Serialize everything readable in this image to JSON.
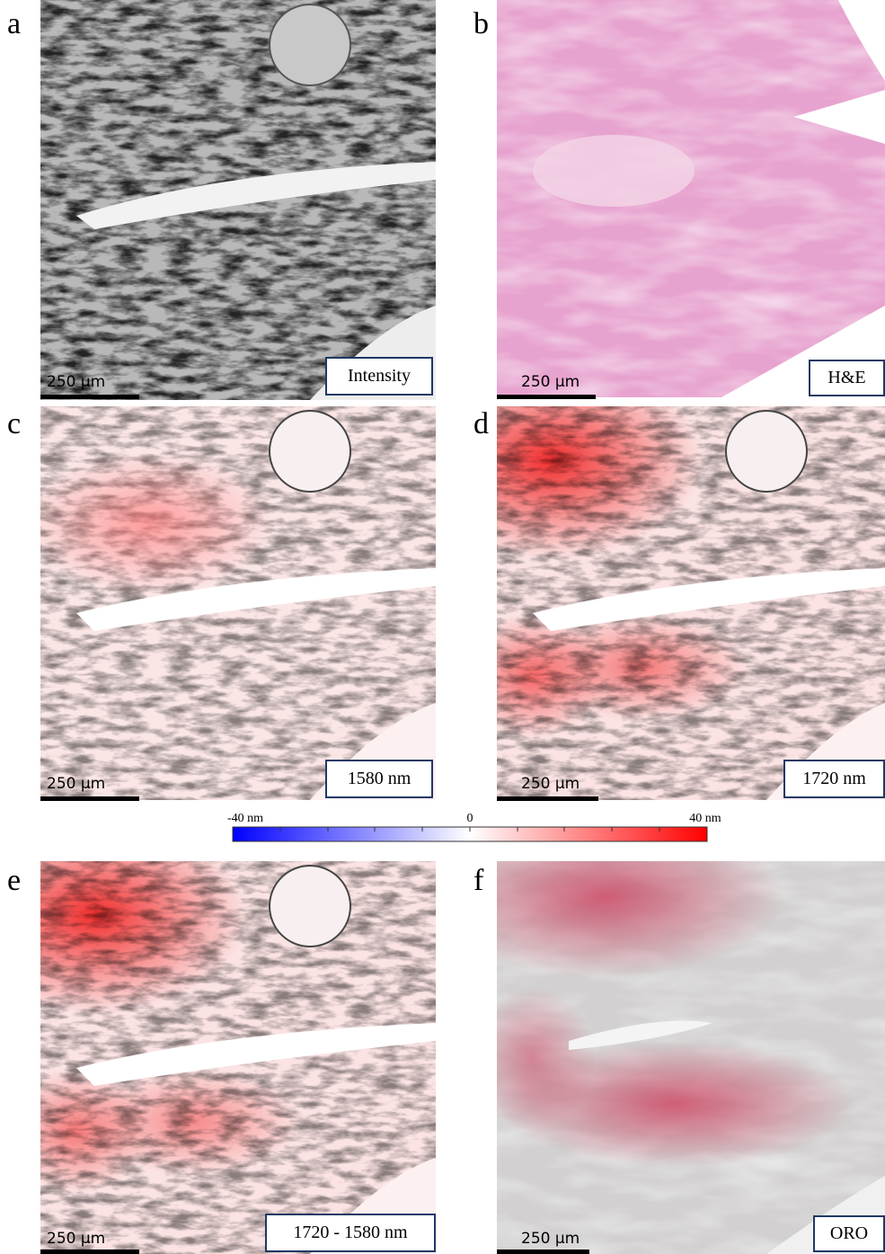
{
  "panels": [
    {
      "letter": "a",
      "label": "Intensity",
      "scale_bar": "250 µm"
    },
    {
      "letter": "b",
      "label": "H&E",
      "scale_bar": "250 µm"
    },
    {
      "letter": "c",
      "label": "1580 nm",
      "scale_bar": "250 µm"
    },
    {
      "letter": "d",
      "label": "1720 nm",
      "scale_bar": "250 µm"
    },
    {
      "letter": "e",
      "label": "1720 - 1580 nm",
      "scale_bar": "250 µm"
    },
    {
      "letter": "f",
      "label": "ORO",
      "scale_bar": "250 µm"
    }
  ],
  "colorbar": {
    "labels": [
      "-40 nm",
      "0",
      "40 nm"
    ]
  }
}
